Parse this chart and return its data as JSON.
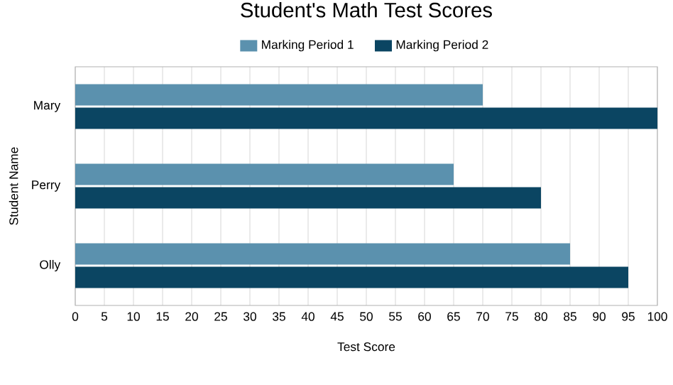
{
  "chart_data": {
    "type": "bar",
    "orientation": "horizontal",
    "title": "Student's Math Test Scores",
    "xlabel": "Test Score",
    "ylabel": "Student Name",
    "categories": [
      "Mary",
      "Perry",
      "Olly"
    ],
    "series": [
      {
        "name": "Marking Period 1",
        "color": "#5b91ae",
        "values": [
          70,
          65,
          85
        ]
      },
      {
        "name": "Marking Period 2",
        "color": "#0b4562",
        "values": [
          100,
          80,
          95
        ]
      }
    ],
    "xlim": [
      0,
      100
    ],
    "xticks": [
      0,
      5,
      10,
      15,
      20,
      25,
      30,
      35,
      40,
      45,
      50,
      55,
      60,
      65,
      70,
      75,
      80,
      85,
      90,
      95,
      100
    ],
    "grid": "x",
    "legend": "top"
  }
}
